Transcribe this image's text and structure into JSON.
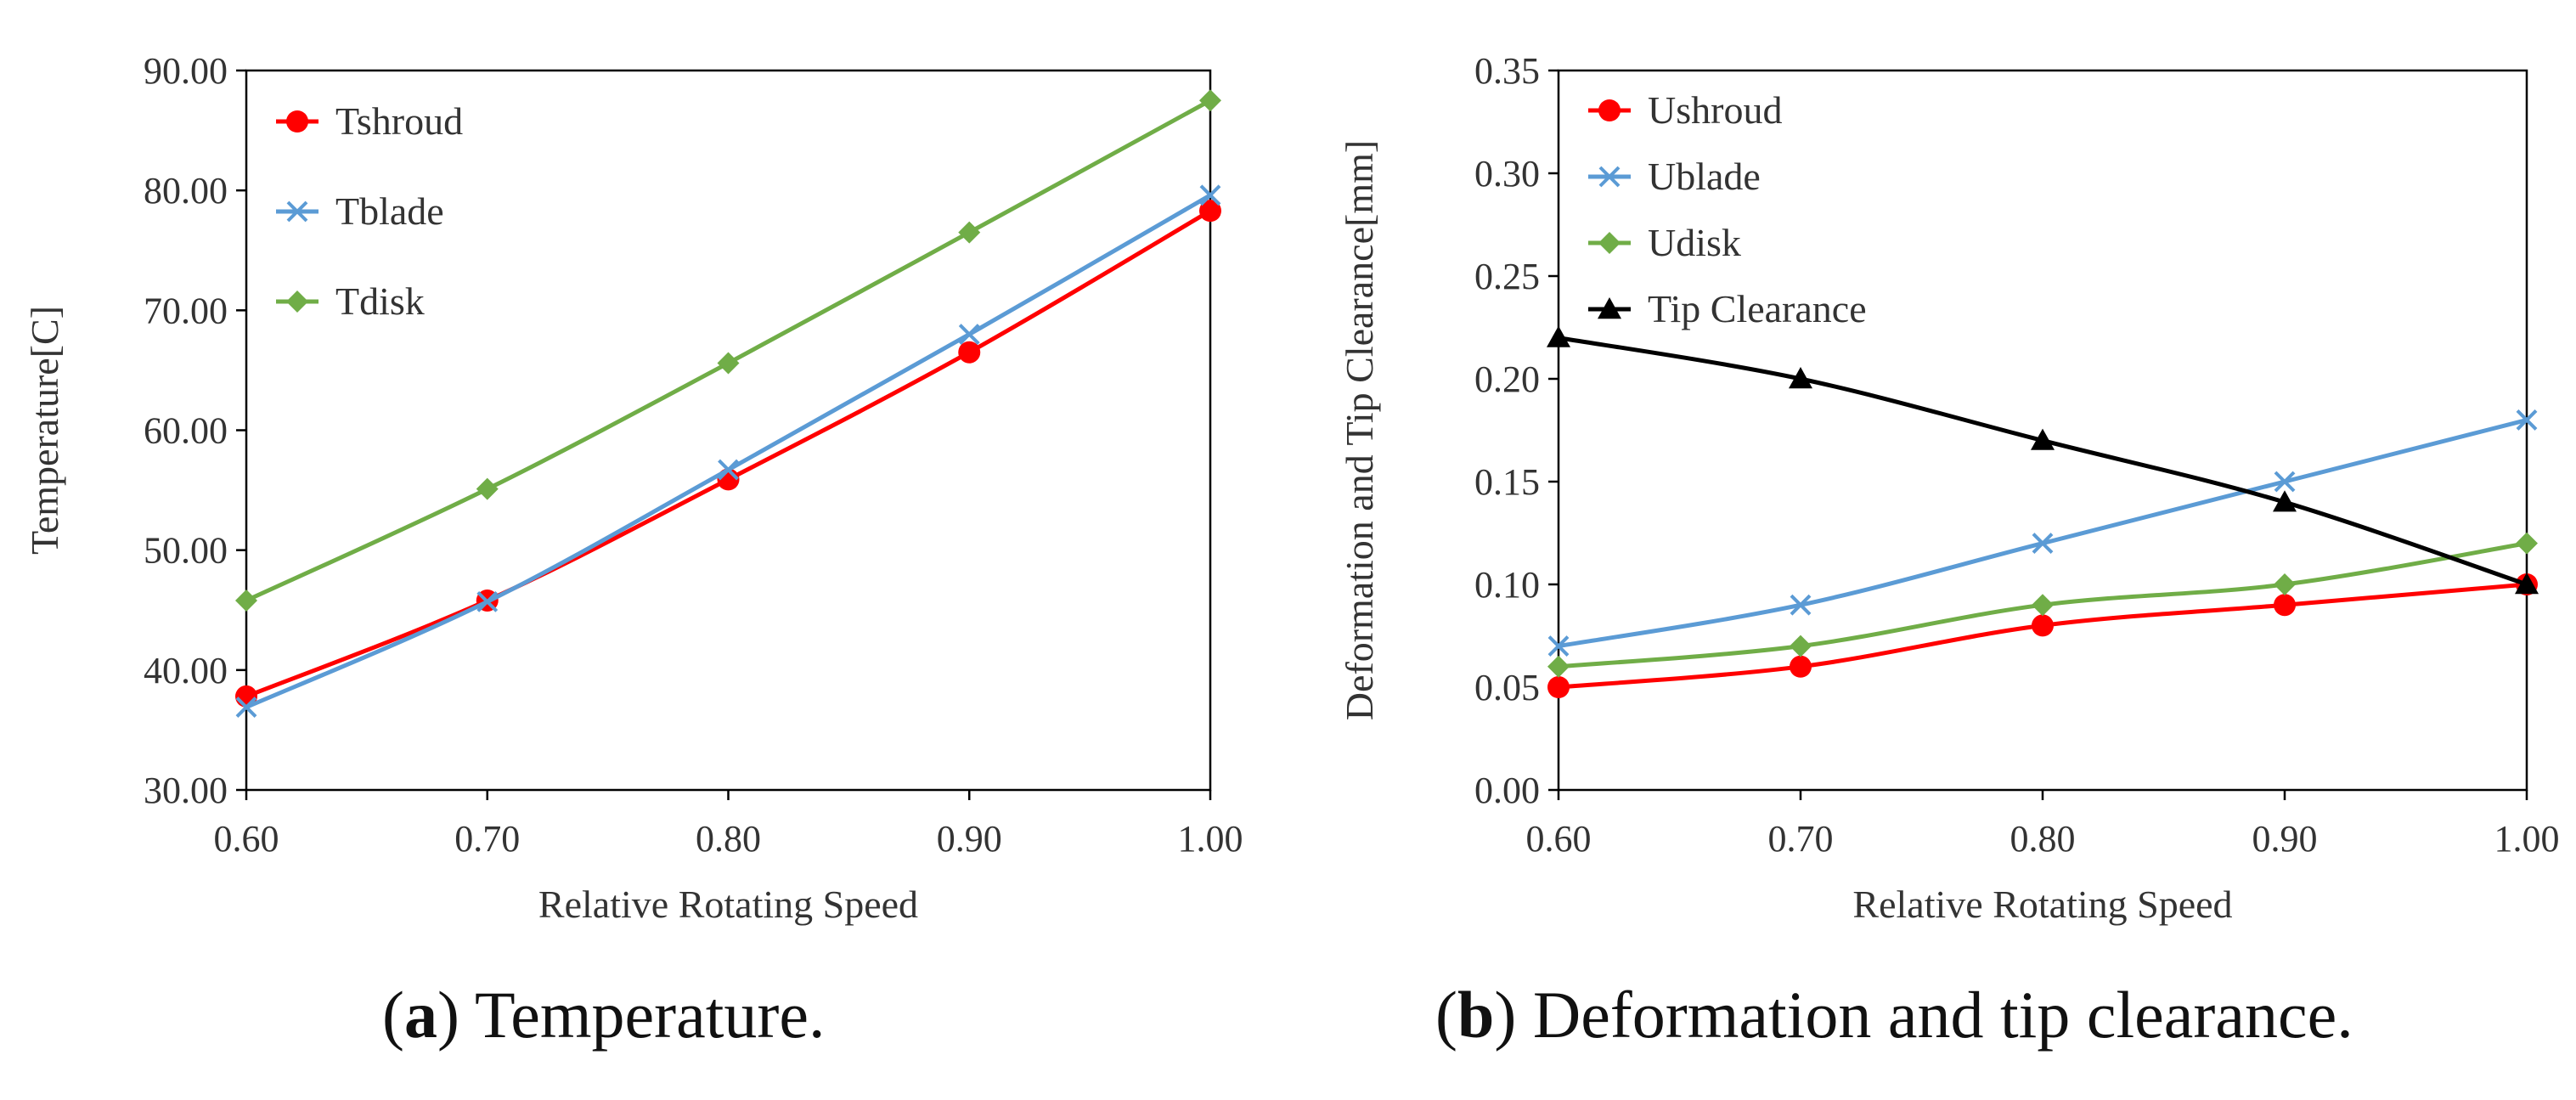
{
  "chart_data": [
    {
      "type": "line",
      "id": "a",
      "title": "",
      "xlabel": "Relative Rotating Speed",
      "ylabel": "Temperature[C]",
      "xlim": [
        0.6,
        1.0
      ],
      "ylim": [
        30,
        90
      ],
      "x": [
        0.6,
        0.7,
        0.8,
        0.9,
        1.0
      ],
      "xticks": [
        "0.60",
        "0.70",
        "0.80",
        "0.90",
        "1.00"
      ],
      "yticks": [
        "30.00",
        "40.00",
        "50.00",
        "60.00",
        "70.00",
        "80.00",
        "90.00"
      ],
      "legend_position": "top-left",
      "grid": false,
      "series": [
        {
          "name": "Tshroud",
          "color": "#ff0000",
          "marker": "circle",
          "values": [
            37.8,
            45.8,
            55.9,
            66.5,
            78.3
          ]
        },
        {
          "name": "Tblade",
          "color": "#5b9bd5",
          "marker": "x",
          "values": [
            36.9,
            45.7,
            56.7,
            68.0,
            79.6
          ]
        },
        {
          "name": "Tdisk",
          "color": "#70ad47",
          "marker": "diamond",
          "values": [
            45.8,
            55.1,
            65.6,
            76.5,
            87.5
          ]
        }
      ],
      "caption_letter": "a",
      "caption_text": " Temperature."
    },
    {
      "type": "line",
      "id": "b",
      "title": "",
      "xlabel": "Relative Rotating Speed",
      "ylabel": "Deformation and Tip Clearance[mm]",
      "xlim": [
        0.6,
        1.0
      ],
      "ylim": [
        0,
        0.35
      ],
      "x": [
        0.6,
        0.7,
        0.8,
        0.9,
        1.0
      ],
      "xticks": [
        "0.60",
        "0.70",
        "0.80",
        "0.90",
        "1.00"
      ],
      "yticks": [
        "0.00",
        "0.05",
        "0.10",
        "0.15",
        "0.20",
        "0.25",
        "0.30",
        "0.35"
      ],
      "legend_position": "top-left",
      "grid": false,
      "series": [
        {
          "name": "Ushroud",
          "color": "#ff0000",
          "marker": "circle",
          "values": [
            0.05,
            0.06,
            0.08,
            0.09,
            0.1
          ]
        },
        {
          "name": "Ublade",
          "color": "#5b9bd5",
          "marker": "x",
          "values": [
            0.07,
            0.09,
            0.12,
            0.15,
            0.18
          ]
        },
        {
          "name": "Udisk",
          "color": "#70ad47",
          "marker": "diamond",
          "values": [
            0.06,
            0.07,
            0.09,
            0.1,
            0.12
          ]
        },
        {
          "name": "Tip Clearance",
          "color": "#000000",
          "marker": "triangle",
          "values": [
            0.22,
            0.2,
            0.17,
            0.14,
            0.1
          ]
        }
      ],
      "caption_letter": "b",
      "caption_text": " Deformation and tip clearance."
    }
  ]
}
